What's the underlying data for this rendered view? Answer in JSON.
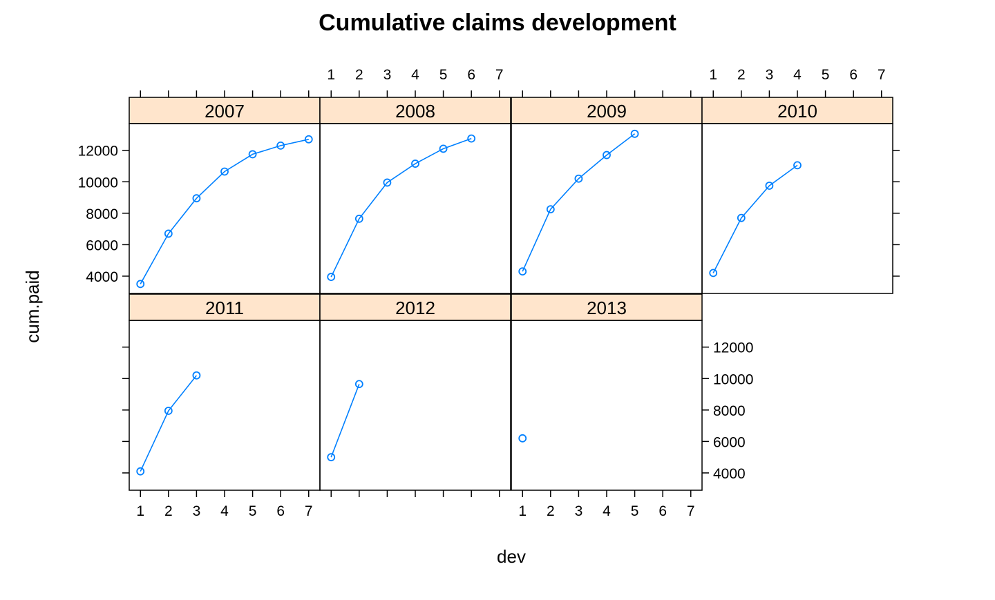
{
  "chart_data": {
    "type": "line",
    "title": "Cumulative claims development",
    "xlabel": "dev",
    "ylabel": "cum.paid",
    "x_ticks": [
      1,
      2,
      3,
      4,
      5,
      6,
      7
    ],
    "y_ticks": [
      4000,
      6000,
      8000,
      10000,
      12000
    ],
    "xlim": [
      0.6,
      7.4
    ],
    "ylim": [
      2900,
      13700
    ],
    "grid": false,
    "panels": [
      {
        "name": "2007",
        "x": [
          1,
          2,
          3,
          4,
          5,
          6,
          7
        ],
        "values": [
          3500,
          6700,
          8950,
          10650,
          11750,
          12300,
          12700
        ]
      },
      {
        "name": "2008",
        "x": [
          1,
          2,
          3,
          4,
          5,
          6
        ],
        "values": [
          3950,
          7650,
          9950,
          11150,
          12100,
          12750
        ]
      },
      {
        "name": "2009",
        "x": [
          1,
          2,
          3,
          4,
          5
        ],
        "values": [
          4300,
          8250,
          10200,
          11700,
          13050
        ]
      },
      {
        "name": "2010",
        "x": [
          1,
          2,
          3,
          4
        ],
        "values": [
          4200,
          7700,
          9750,
          11050
        ]
      },
      {
        "name": "2011",
        "x": [
          1,
          2,
          3
        ],
        "values": [
          4100,
          7950,
          10200
        ]
      },
      {
        "name": "2012",
        "x": [
          1,
          2
        ],
        "values": [
          5000,
          9650
        ]
      },
      {
        "name": "2013",
        "x": [
          1
        ],
        "values": [
          6200
        ]
      }
    ],
    "colors": {
      "line": "#0080ff",
      "strip": "#ffe5cc",
      "frame": "#000000"
    }
  }
}
